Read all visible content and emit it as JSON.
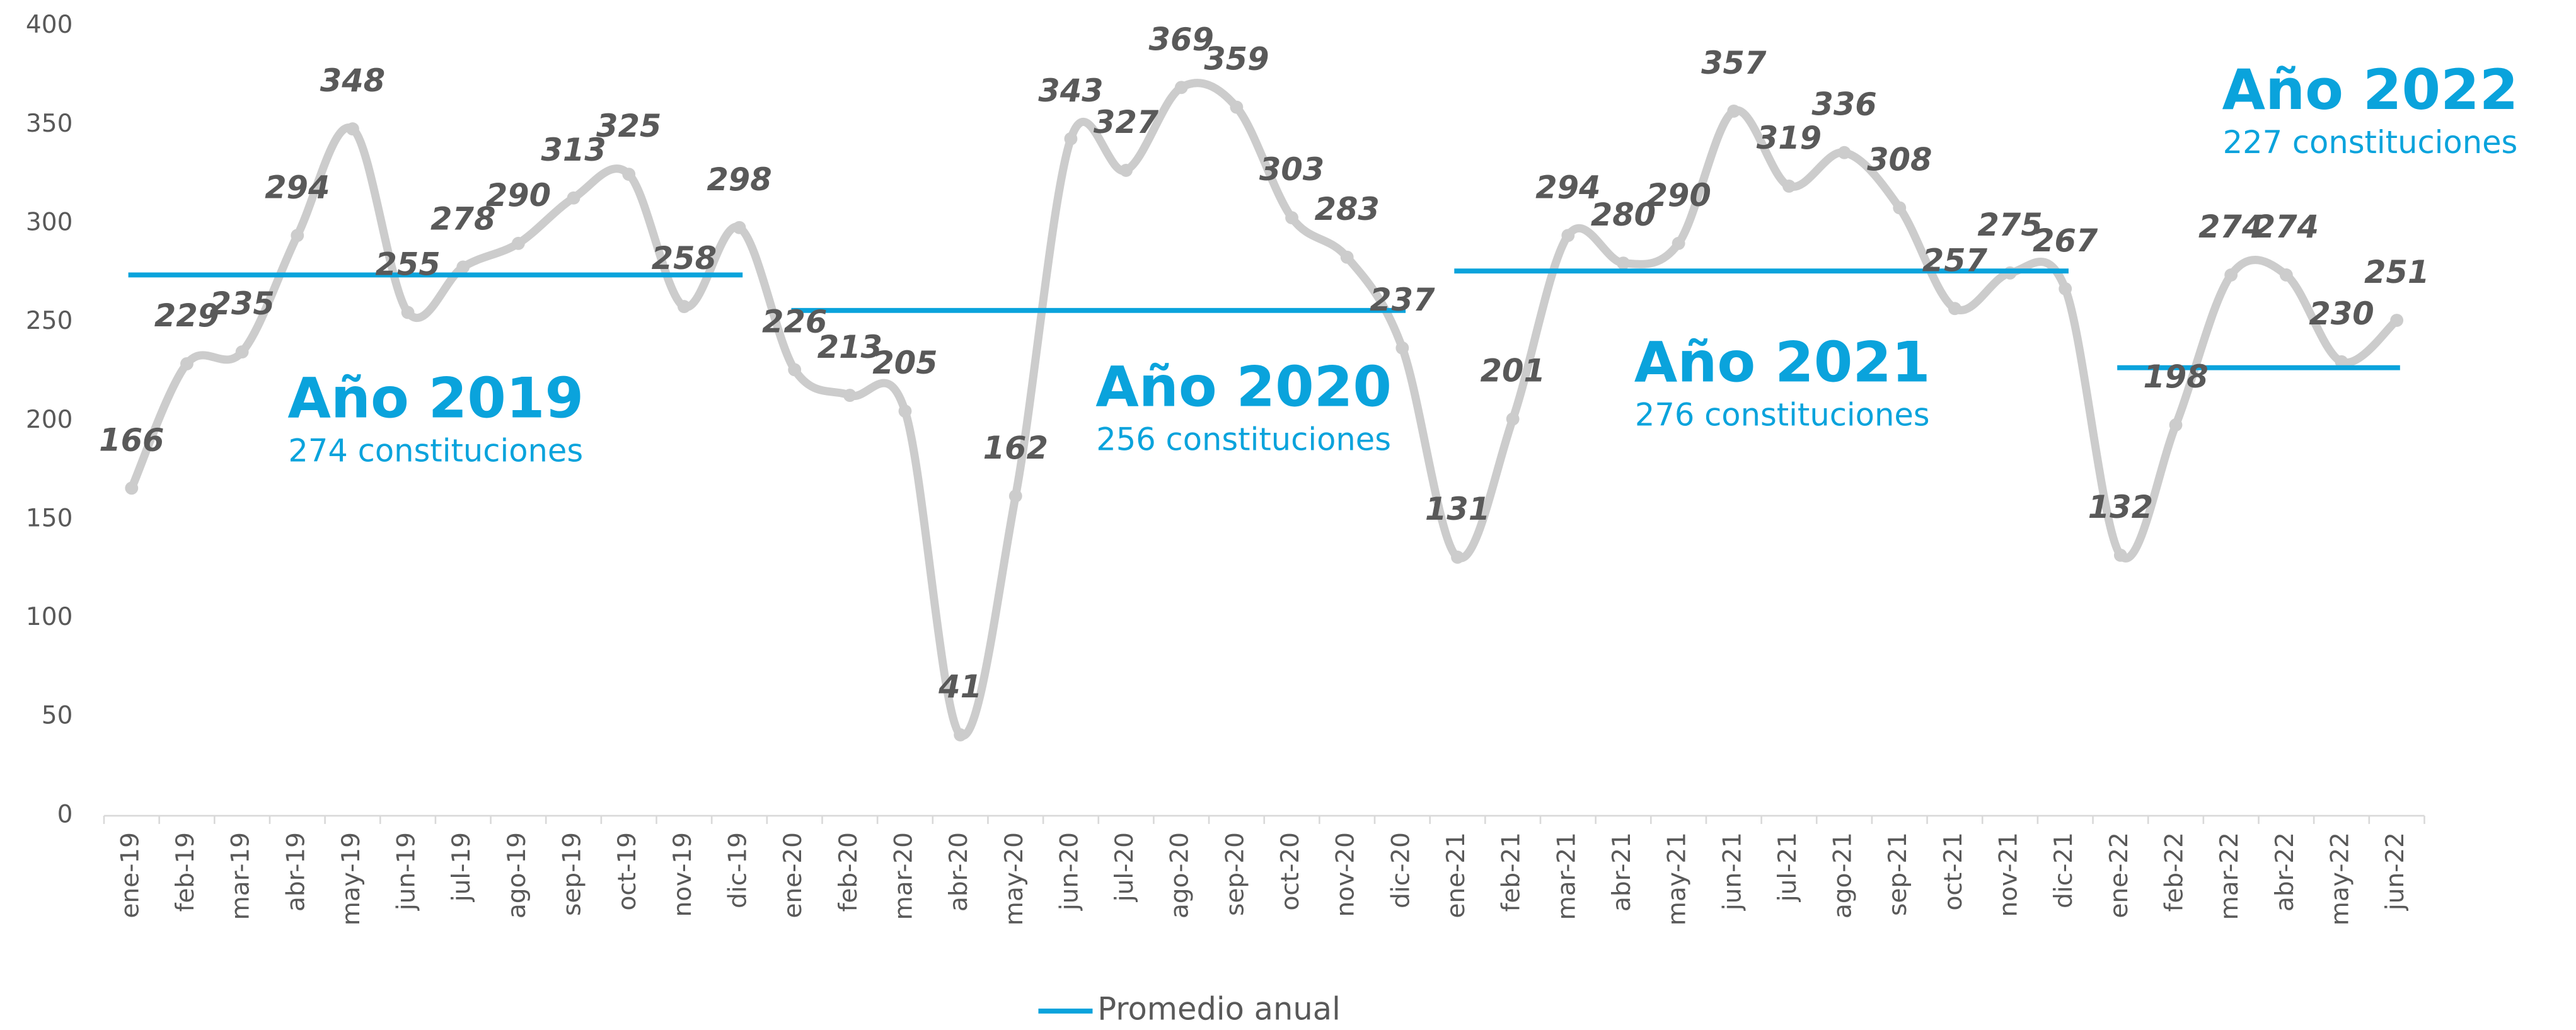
{
  "chart_data": {
    "type": "line",
    "categories": [
      "ene-19",
      "feb-19",
      "mar-19",
      "abr-19",
      "may-19",
      "jun-19",
      "jul-19",
      "ago-19",
      "sep-19",
      "oct-19",
      "nov-19",
      "dic-19",
      "ene-20",
      "feb-20",
      "mar-20",
      "abr-20",
      "may-20",
      "jun-20",
      "jul-20",
      "ago-20",
      "sep-20",
      "oct-20",
      "nov-20",
      "dic-20",
      "ene-21",
      "feb-21",
      "mar-21",
      "abr-21",
      "may-21",
      "jun-21",
      "jul-21",
      "ago-21",
      "sep-21",
      "oct-21",
      "nov-21",
      "dic-21",
      "ene-22",
      "feb-22",
      "mar-22",
      "abr-22",
      "may-22",
      "jun-22"
    ],
    "values": [
      166,
      229,
      235,
      294,
      348,
      255,
      278,
      290,
      313,
      325,
      258,
      298,
      226,
      213,
      205,
      41,
      162,
      343,
      327,
      369,
      359,
      303,
      283,
      237,
      131,
      201,
      294,
      280,
      290,
      357,
      319,
      336,
      308,
      257,
      275,
      267,
      132,
      198,
      274,
      274,
      230,
      251
    ],
    "color": "#cccccc",
    "averages": {
      "name": "Promedio anual",
      "color": "#0aa3dc",
      "groups": [
        {
          "title": "Año 2019",
          "value": 274,
          "label": "274 constituciones"
        },
        {
          "title": "Año 2020",
          "value": 256,
          "label": "256 constituciones"
        },
        {
          "title": "Año 2021",
          "value": 276,
          "label": "276 constituciones"
        },
        {
          "title": "Año 2022",
          "value": 227,
          "label": "227 constituciones"
        }
      ]
    },
    "ylim": [
      0,
      400
    ],
    "yticks": [
      0,
      50,
      100,
      150,
      200,
      250,
      300,
      350,
      400
    ],
    "grid": false,
    "legend": "bottom"
  }
}
